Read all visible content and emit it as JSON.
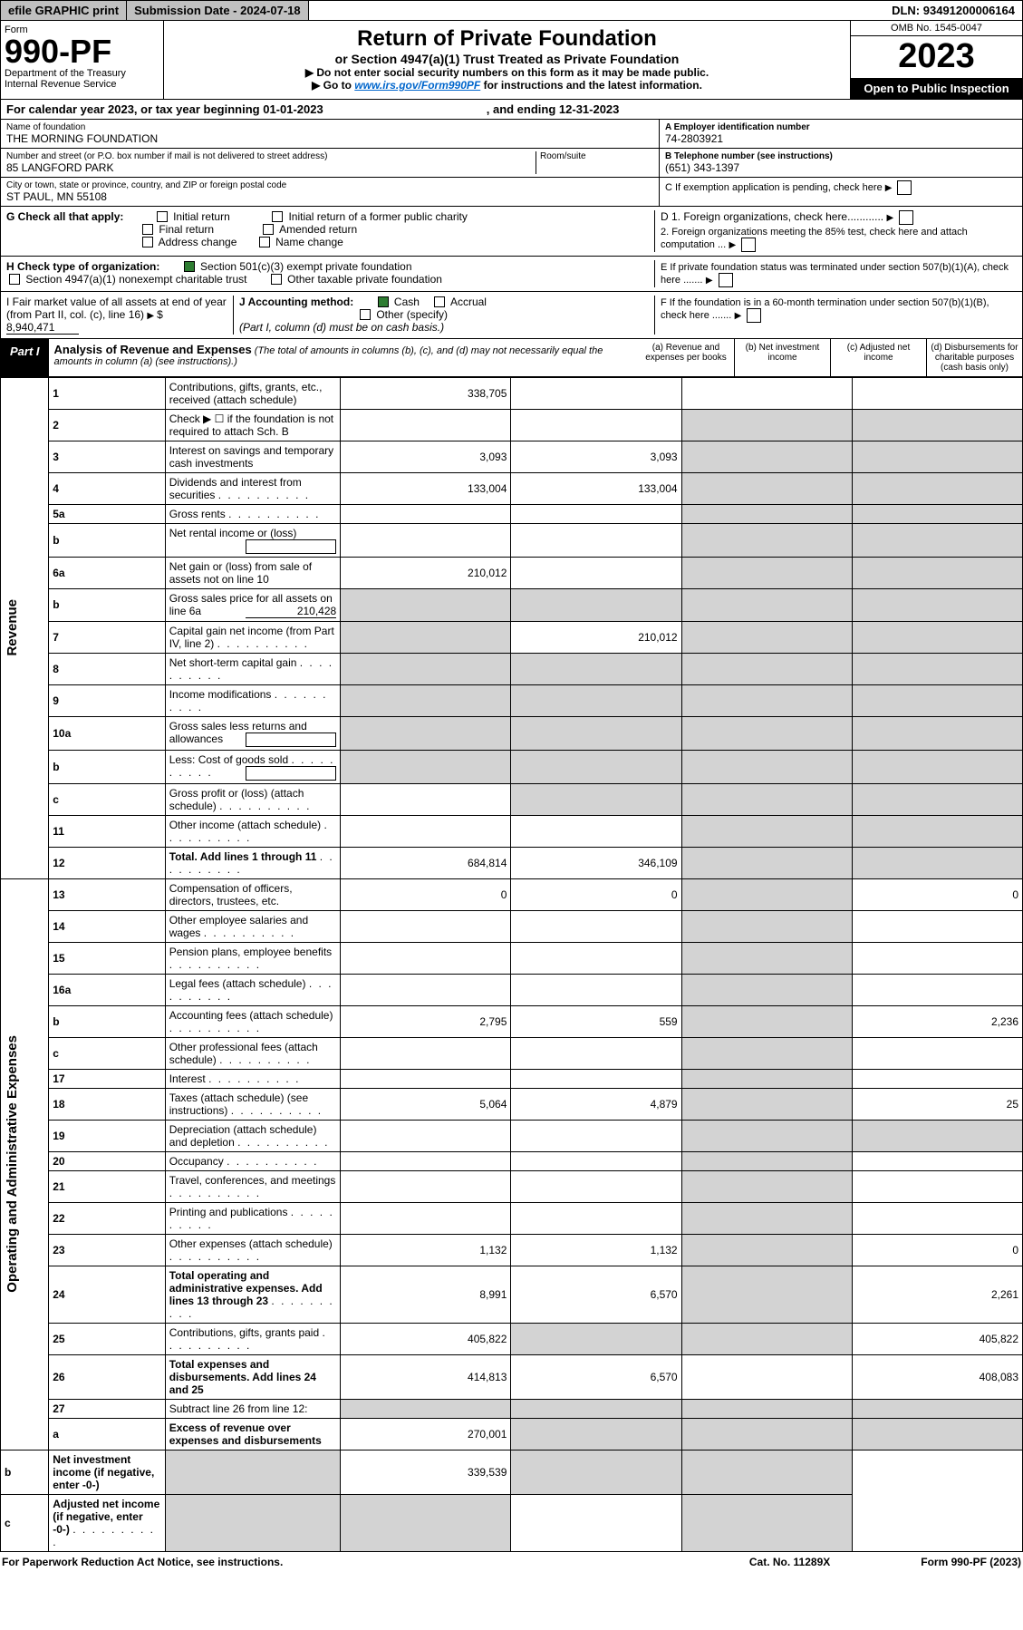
{
  "topbar": {
    "efile": "efile GRAPHIC print",
    "subdate_label": "Submission Date - ",
    "subdate": "2024-07-18",
    "dln_label": "DLN: ",
    "dln": "93491200006164"
  },
  "header": {
    "form": "Form",
    "formnum": "990-PF",
    "dept": "Department of the Treasury",
    "irs": "Internal Revenue Service",
    "title": "Return of Private Foundation",
    "subtitle": "or Section 4947(a)(1) Trust Treated as Private Foundation",
    "note1": "▶ Do not enter social security numbers on this form as it may be made public.",
    "note2_pre": "▶ Go to ",
    "note2_link": "www.irs.gov/Form990PF",
    "note2_post": " for instructions and the latest information.",
    "omb": "OMB No. 1545-0047",
    "year": "2023",
    "open": "Open to Public Inspection"
  },
  "calyear": {
    "text": "For calendar year 2023, or tax year beginning 01-01-2023",
    "ending": ", and ending 12-31-2023"
  },
  "info": {
    "name_label": "Name of foundation",
    "name": "THE MORNING FOUNDATION",
    "addr_label": "Number and street (or P.O. box number if mail is not delivered to street address)",
    "addr": "85 LANGFORD PARK",
    "room_label": "Room/suite",
    "city_label": "City or town, state or province, country, and ZIP or foreign postal code",
    "city": "ST PAUL, MN  55108",
    "ein_label": "A Employer identification number",
    "ein": "74-2803921",
    "phone_label": "B Telephone number (see instructions)",
    "phone": "(651) 343-1397",
    "c_label": "C If exemption application is pending, check here"
  },
  "checks": {
    "g_label": "G Check all that apply:",
    "g_opts": [
      "Initial return",
      "Final return",
      "Address change",
      "Initial return of a former public charity",
      "Amended return",
      "Name change"
    ],
    "h_label": "H Check type of organization:",
    "h_501": "Section 501(c)(3) exempt private foundation",
    "h_4947": "Section 4947(a)(1) nonexempt charitable trust",
    "h_other": "Other taxable private foundation",
    "i_label": "I Fair market value of all assets at end of year (from Part II, col. (c), line 16)",
    "i_val": "8,940,471",
    "j_label": "J Accounting method:",
    "j_cash": "Cash",
    "j_accrual": "Accrual",
    "j_other": "Other (specify)",
    "j_note": "(Part I, column (d) must be on cash basis.)",
    "d1": "D 1. Foreign organizations, check here............",
    "d2": "2. Foreign organizations meeting the 85% test, check here and attach computation ...",
    "e": "E  If private foundation status was terminated under section 507(b)(1)(A), check here .......",
    "f": "F  If the foundation is in a 60-month termination under section 507(b)(1)(B), check here ......."
  },
  "part1": {
    "label": "Part I",
    "title": "Analysis of Revenue and Expenses",
    "note": " (The total of amounts in columns (b), (c), and (d) may not necessarily equal the amounts in column (a) (see instructions).)",
    "col_a": "(a) Revenue and expenses per books",
    "col_b": "(b) Net investment income",
    "col_c": "(c) Adjusted net income",
    "col_d": "(d) Disbursements for charitable purposes (cash basis only)"
  },
  "sidelabels": {
    "revenue": "Revenue",
    "expenses": "Operating and Administrative Expenses"
  },
  "rows": [
    {
      "n": "1",
      "d": "Contributions, gifts, grants, etc., received (attach schedule)",
      "a": "338,705",
      "cs": false,
      "ds": false
    },
    {
      "n": "2",
      "d": "Check ▶ ☐ if the foundation is not required to attach Sch. B",
      "dotsonly": true
    },
    {
      "n": "3",
      "d": "Interest on savings and temporary cash investments",
      "a": "3,093",
      "b": "3,093"
    },
    {
      "n": "4",
      "d": "Dividends and interest from securities",
      "a": "133,004",
      "b": "133,004",
      "dots": true
    },
    {
      "n": "5a",
      "d": "Gross rents",
      "dots": true
    },
    {
      "n": "b",
      "d": "Net rental income or (loss)",
      "inline_box": true
    },
    {
      "n": "6a",
      "d": "Net gain or (loss) from sale of assets not on line 10",
      "a": "210,012",
      "cs": true,
      "ds": true
    },
    {
      "n": "b",
      "d": "Gross sales price for all assets on line 6a",
      "inline_val": "210,428",
      "cs": true,
      "ds": true,
      "as": true,
      "bs": true
    },
    {
      "n": "7",
      "d": "Capital gain net income (from Part IV, line 2)",
      "b": "210,012",
      "as": true,
      "dots": true
    },
    {
      "n": "8",
      "d": "Net short-term capital gain",
      "as": true,
      "bs": true,
      "dots": true
    },
    {
      "n": "9",
      "d": "Income modifications",
      "as": true,
      "bs": true,
      "dots": true
    },
    {
      "n": "10a",
      "d": "Gross sales less returns and allowances",
      "inline_box": true,
      "as": true,
      "bs": true,
      "cs": true,
      "ds": true
    },
    {
      "n": "b",
      "d": "Less: Cost of goods sold",
      "inline_box": true,
      "as": true,
      "bs": true,
      "cs": true,
      "ds": true,
      "dots": true
    },
    {
      "n": "c",
      "d": "Gross profit or (loss) (attach schedule)",
      "bs": true,
      "dots": true
    },
    {
      "n": "11",
      "d": "Other income (attach schedule)",
      "dots": true
    },
    {
      "n": "12",
      "d": "Total. Add lines 1 through 11",
      "a": "684,814",
      "b": "346,109",
      "bold": true,
      "dots": true
    },
    {
      "n": "13",
      "d": "Compensation of officers, directors, trustees, etc.",
      "a": "0",
      "b": "0",
      "d_": "0"
    },
    {
      "n": "14",
      "d": "Other employee salaries and wages",
      "dots": true
    },
    {
      "n": "15",
      "d": "Pension plans, employee benefits",
      "dots": true
    },
    {
      "n": "16a",
      "d": "Legal fees (attach schedule)",
      "dots": true
    },
    {
      "n": "b",
      "d": "Accounting fees (attach schedule)",
      "a": "2,795",
      "b": "559",
      "d_": "2,236",
      "dots": true
    },
    {
      "n": "c",
      "d": "Other professional fees (attach schedule)",
      "dots": true
    },
    {
      "n": "17",
      "d": "Interest",
      "dots": true
    },
    {
      "n": "18",
      "d": "Taxes (attach schedule) (see instructions)",
      "a": "5,064",
      "b": "4,879",
      "d_": "25",
      "dots": true
    },
    {
      "n": "19",
      "d": "Depreciation (attach schedule) and depletion",
      "ds": true,
      "dots": true
    },
    {
      "n": "20",
      "d": "Occupancy",
      "dots": true
    },
    {
      "n": "21",
      "d": "Travel, conferences, and meetings",
      "dots": true
    },
    {
      "n": "22",
      "d": "Printing and publications",
      "dots": true
    },
    {
      "n": "23",
      "d": "Other expenses (attach schedule)",
      "a": "1,132",
      "b": "1,132",
      "d_": "0",
      "dots": true
    },
    {
      "n": "24",
      "d": "Total operating and administrative expenses. Add lines 13 through 23",
      "a": "8,991",
      "b": "6,570",
      "d_": "2,261",
      "bold": true,
      "dots": true
    },
    {
      "n": "25",
      "d": "Contributions, gifts, grants paid",
      "a": "405,822",
      "d_": "405,822",
      "bs": true,
      "cs": true,
      "dots": true
    },
    {
      "n": "26",
      "d": "Total expenses and disbursements. Add lines 24 and 25",
      "a": "414,813",
      "b": "6,570",
      "d_": "408,083",
      "bold": true
    },
    {
      "n": "27",
      "d": "Subtract line 26 from line 12:",
      "as": true,
      "bs": true,
      "cs": true,
      "ds": true
    },
    {
      "n": "a",
      "d": "Excess of revenue over expenses and disbursements",
      "a": "270,001",
      "bs": true,
      "cs": true,
      "ds": true,
      "bold": true
    },
    {
      "n": "b",
      "d": "Net investment income (if negative, enter -0-)",
      "b": "339,539",
      "as": true,
      "cs": true,
      "ds": true,
      "bold": true
    },
    {
      "n": "c",
      "d": "Adjusted net income (if negative, enter -0-)",
      "as": true,
      "bs": true,
      "ds": true,
      "bold": true,
      "dots": true
    }
  ],
  "footer": {
    "left": "For Paperwork Reduction Act Notice, see instructions.",
    "mid": "Cat. No. 11289X",
    "right": "Form 990-PF (2023)"
  }
}
